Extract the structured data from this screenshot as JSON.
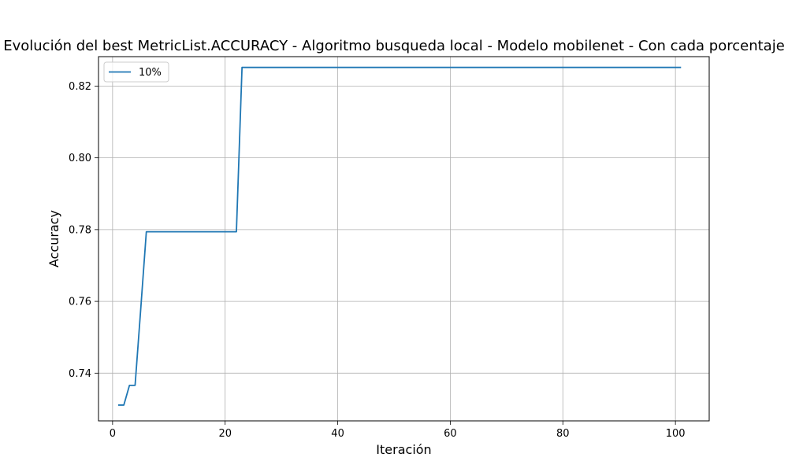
{
  "chart_data": {
    "type": "line",
    "title": "Evolución del best MetricList.ACCURACY - Algoritmo busqueda local - Modelo mobilenet - Con cada porcentaje",
    "xlabel": "Iteración",
    "ylabel": "Accuracy",
    "xlim": [
      -2.5,
      106
    ],
    "ylim": [
      0.7267,
      0.8282
    ],
    "xticks": [
      0,
      20,
      40,
      60,
      80,
      100
    ],
    "yticks": [
      0.74,
      0.76,
      0.78,
      0.8,
      0.82
    ],
    "ytick_labels": [
      "0.74",
      "0.76",
      "0.78",
      "0.80",
      "0.82"
    ],
    "grid": true,
    "legend_position": "top-left",
    "series": [
      {
        "name": "10%",
        "color": "#1f77b4",
        "x": [
          1,
          2,
          3,
          4,
          5,
          6,
          22,
          23,
          101
        ],
        "y": [
          0.7311,
          0.7311,
          0.7366,
          0.7366,
          0.7578,
          0.7794,
          0.7794,
          0.8252,
          0.8252
        ]
      }
    ]
  }
}
